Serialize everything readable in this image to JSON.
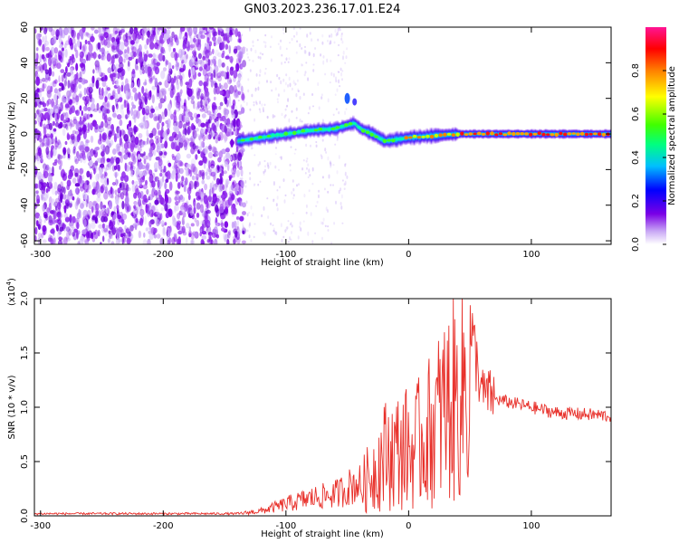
{
  "title": "GN03.2023.236.17.01.E24",
  "colors": {
    "snr_line": "#e8302a",
    "spectrogram_noise": "#7a00e6",
    "spectrogram_core": "#ff2020"
  },
  "chart_data": [
    {
      "type": "heatmap",
      "xlabel": "Height of straight line (km)",
      "ylabel": "Frequency (Hz)",
      "xlim": [
        -305,
        165
      ],
      "ylim": [
        -62,
        60
      ],
      "xticks": [
        -300,
        -200,
        -100,
        0,
        100
      ],
      "yticks": [
        60,
        40,
        20,
        0,
        -20,
        -40,
        -60
      ],
      "grid": false,
      "colorbar": {
        "label": "Normalized spectral amplitude",
        "range": [
          0,
          1
        ],
        "ticks": [
          0.0,
          0.2,
          0.4,
          0.6,
          0.8
        ],
        "colormap": [
          "#ffffff",
          "#7a00e6",
          "#0000ff",
          "#00ffff",
          "#00ff00",
          "#ffff00",
          "#ff8000",
          "#ff0000",
          "#ff1493"
        ]
      },
      "noise_region_x": [
        -305,
        -140
      ],
      "signal_track": {
        "x": [
          -140,
          -120,
          -100,
          -80,
          -60,
          -50,
          -45,
          -40,
          -30,
          -20,
          -10,
          0,
          20,
          40,
          60,
          100,
          165
        ],
        "center_hz": [
          -4,
          -2,
          0,
          2,
          3,
          5,
          6,
          3,
          0,
          -4,
          -3,
          -2,
          -1,
          0,
          0,
          0,
          0
        ],
        "peak_amplitude": [
          0.3,
          0.4,
          0.45,
          0.5,
          0.55,
          0.6,
          0.6,
          0.55,
          0.6,
          0.6,
          0.65,
          0.7,
          0.75,
          0.85,
          0.9,
          0.95,
          0.95
        ]
      },
      "annotations": [
        {
          "x": -50,
          "y": 20,
          "note": "spike"
        }
      ]
    },
    {
      "type": "line",
      "xlabel": "Height of straight line (km)",
      "ylabel": "SNR (10 * v/v)",
      "yscale_label": "(x10",
      "yscale_exp": "4",
      "yscale_suffix": ")",
      "xlim": [
        -305,
        165
      ],
      "ylim": [
        0,
        2.0
      ],
      "xticks": [
        -300,
        -200,
        -100,
        0,
        100
      ],
      "yticks": [
        0.0,
        0.5,
        1.0,
        1.5,
        2.0
      ],
      "grid": false,
      "series": [
        {
          "x": [
            -305,
            -200,
            -140,
            -120,
            -100,
            -80,
            -60,
            -40,
            -30,
            -20,
            0,
            20,
            30,
            40,
            45,
            60,
            80,
            100,
            120,
            165
          ],
          "y": [
            0.02,
            0.02,
            0.02,
            0.05,
            0.12,
            0.18,
            0.22,
            0.35,
            0.55,
            0.8,
            0.9,
            1.3,
            1.6,
            1.7,
            2.0,
            1.1,
            1.05,
            1.0,
            0.95,
            0.92
          ]
        }
      ]
    }
  ]
}
